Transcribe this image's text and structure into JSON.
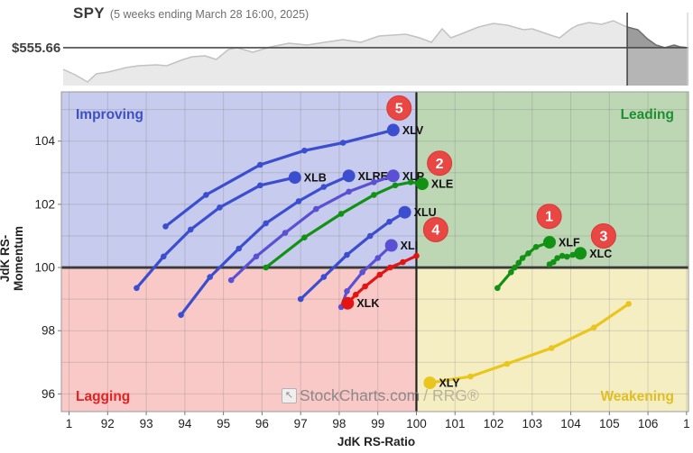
{
  "header": {
    "symbol": "SPY",
    "subtitle": "(5 weeks ending March 28 16:00, 2025)",
    "price_label": "$555.66"
  },
  "axes": {
    "x_label": "JdK RS-Ratio",
    "y_label": "JdK RS-Momentum"
  },
  "watermark": {
    "icon": "stockcharts-logo-icon",
    "brand": "StockCharts.com",
    "suffix": "/ RRG®"
  },
  "chart_data": [
    {
      "type": "area",
      "name": "spy-price-sparkline",
      "title": "SPY",
      "subtitle": "(5 weeks ending March 28 16:00, 2025)",
      "price_line_label": "$555.66",
      "price_line_y_pct": 51.7,
      "highlight_start_x_pct": 90.2,
      "colors": {
        "area": "#e9e9e9",
        "line": "#c2c2c2",
        "highlight_area": "#9c9c9c",
        "highlight_below": "#b5b5b5",
        "highlight_line": "#6e6e6e",
        "price_line": "#4a4a4a",
        "divider": "#4a4a4a",
        "right_edge": "#cfcfcf"
      },
      "points_pct": [
        [
          0,
          79.3
        ],
        [
          1.9,
          86.2
        ],
        [
          3.9,
          95.4
        ],
        [
          5.3,
          85.1
        ],
        [
          7.2,
          82.8
        ],
        [
          10.1,
          77.0
        ],
        [
          12.0,
          74.7
        ],
        [
          14.9,
          73.6
        ],
        [
          16.6,
          74.7
        ],
        [
          18.8,
          67.8
        ],
        [
          20.6,
          63.2
        ],
        [
          22.7,
          62.1
        ],
        [
          24.5,
          66.7
        ],
        [
          26.4,
          54.0
        ],
        [
          27.8,
          51.7
        ],
        [
          30.3,
          57.5
        ],
        [
          33.2,
          50.6
        ],
        [
          36.1,
          46.0
        ],
        [
          39.0,
          48.3
        ],
        [
          41.8,
          44.8
        ],
        [
          44.7,
          41.4
        ],
        [
          47.6,
          44.8
        ],
        [
          50.5,
          36.8
        ],
        [
          54.8,
          34.5
        ],
        [
          57.0,
          39.1
        ],
        [
          58.9,
          44.8
        ],
        [
          60.6,
          27.6
        ],
        [
          62.0,
          39.1
        ],
        [
          63.9,
          33.3
        ],
        [
          66.4,
          25.3
        ],
        [
          68.8,
          20.7
        ],
        [
          71.1,
          23.0
        ],
        [
          73.6,
          28.7
        ],
        [
          75.0,
          27.6
        ],
        [
          78.4,
          36.8
        ],
        [
          79.4,
          39.1
        ],
        [
          81.2,
          27.6
        ],
        [
          82.3,
          23.0
        ],
        [
          84.1,
          19.5
        ],
        [
          86.1,
          21.8
        ],
        [
          88.0,
          17.2
        ],
        [
          89.5,
          23.0
        ],
        [
          90.2,
          25.3
        ],
        [
          91.9,
          28.7
        ],
        [
          93.4,
          40.2
        ],
        [
          94.8,
          48.3
        ],
        [
          96.2,
          51.7
        ],
        [
          97.7,
          48.3
        ],
        [
          98.6,
          50.6
        ],
        [
          100,
          51.7
        ]
      ]
    },
    {
      "type": "line",
      "name": "relative-rotation-graph",
      "xlabel": "JdK RS-Ratio",
      "ylabel": "JdK RS-Momentum",
      "xlim": [
        90.8,
        107.05
      ],
      "ylim": [
        95.44,
        105.56
      ],
      "grid": true,
      "center": {
        "x": 100,
        "y": 100
      },
      "x_ticks": [
        {
          "value": 91,
          "label": "1"
        },
        {
          "value": 92,
          "label": "92"
        },
        {
          "value": 93,
          "label": "93"
        },
        {
          "value": 94,
          "label": "94"
        },
        {
          "value": 95,
          "label": "95"
        },
        {
          "value": 96,
          "label": "96"
        },
        {
          "value": 97,
          "label": "97"
        },
        {
          "value": 98,
          "label": "98"
        },
        {
          "value": 99,
          "label": "99"
        },
        {
          "value": 100,
          "label": "100"
        },
        {
          "value": 101,
          "label": "101"
        },
        {
          "value": 102,
          "label": "102"
        },
        {
          "value": 103,
          "label": "103"
        },
        {
          "value": 104,
          "label": "104"
        },
        {
          "value": 105,
          "label": "105"
        },
        {
          "value": 106,
          "label": "106"
        },
        {
          "value": 107,
          "label": "1"
        }
      ],
      "y_ticks": [
        {
          "value": 104,
          "label": "104"
        },
        {
          "value": 102,
          "label": "102"
        },
        {
          "value": 100,
          "label": "100"
        },
        {
          "value": 98,
          "label": "98"
        },
        {
          "value": 96,
          "label": "96"
        }
      ],
      "quadrants": [
        {
          "id": "improving",
          "label": "Improving",
          "corner": "top-left",
          "bg": "#c7cbed",
          "text_color": "#3c50c4"
        },
        {
          "id": "leading",
          "label": "Leading",
          "corner": "top-right",
          "bg": "#bdd6b4",
          "text_color": "#1d8f2d"
        },
        {
          "id": "lagging",
          "label": "Lagging",
          "corner": "bottom-left",
          "bg": "#f8c9c7",
          "text_color": "#e52222"
        },
        {
          "id": "weakening",
          "label": "Weakening",
          "corner": "bottom-right",
          "bg": "#f6eec3",
          "text_color": "#dfbf24"
        }
      ],
      "series": [
        {
          "name": "XLV",
          "color": "#3b4ed0",
          "points": [
            [
              93.5,
              101.3
            ],
            [
              94.55,
              102.3
            ],
            [
              95.95,
              103.25
            ],
            [
              97.1,
              103.7
            ],
            [
              98.1,
              103.95
            ],
            [
              99.4,
              104.35
            ]
          ]
        },
        {
          "name": "XLB",
          "color": "#3b4ed0",
          "points": [
            [
              92.75,
              99.35
            ],
            [
              93.45,
              100.35
            ],
            [
              94.15,
              101.2
            ],
            [
              94.9,
              101.9
            ],
            [
              95.95,
              102.6
            ],
            [
              96.85,
              102.85
            ]
          ]
        },
        {
          "name": "XLRE",
          "color": "#3b4ed0",
          "points": [
            [
              93.9,
              98.5
            ],
            [
              94.65,
              99.7
            ],
            [
              95.4,
              100.6
            ],
            [
              96.1,
              101.4
            ],
            [
              96.95,
              102.1
            ],
            [
              97.6,
              102.55
            ],
            [
              98.25,
              102.9
            ]
          ]
        },
        {
          "name": "XLP",
          "color": "#5b50d4",
          "points": [
            [
              95.2,
              99.6
            ],
            [
              95.85,
              100.35
            ],
            [
              96.6,
              101.1
            ],
            [
              97.4,
              101.85
            ],
            [
              98.25,
              102.4
            ],
            [
              98.9,
              102.7
            ],
            [
              99.4,
              102.9
            ]
          ]
        },
        {
          "name": "XLU",
          "color": "#3b4ed0",
          "points": [
            [
              97.0,
              99.0
            ],
            [
              97.6,
              99.7
            ],
            [
              98.2,
              100.4
            ],
            [
              98.8,
              101.0
            ],
            [
              99.3,
              101.45
            ],
            [
              99.7,
              101.75
            ]
          ]
        },
        {
          "name": "XLI",
          "color": "#5b50d4",
          "points": [
            [
              98.05,
              98.75
            ],
            [
              98.2,
              99.25
            ],
            [
              98.6,
              99.85
            ],
            [
              99.0,
              100.3
            ],
            [
              99.35,
              100.7
            ]
          ]
        },
        {
          "name": "XLE",
          "color": "#129214",
          "points": [
            [
              96.1,
              100.0
            ],
            [
              97.1,
              100.95
            ],
            [
              98.05,
              101.7
            ],
            [
              98.9,
              102.3
            ],
            [
              99.45,
              102.6
            ],
            [
              99.85,
              102.7
            ],
            [
              100.15,
              102.65
            ]
          ]
        },
        {
          "name": "XLF",
          "color": "#129214",
          "points": [
            [
              102.1,
              99.35
            ],
            [
              102.45,
              99.85
            ],
            [
              102.55,
              100.0
            ],
            [
              102.65,
              100.15
            ],
            [
              102.75,
              100.3
            ],
            [
              102.9,
              100.45
            ],
            [
              103.1,
              100.65
            ],
            [
              103.45,
              100.8
            ]
          ]
        },
        {
          "name": "XLC",
          "color": "#129214",
          "points": [
            [
              103.45,
              100.1
            ],
            [
              103.55,
              100.17
            ],
            [
              103.65,
              100.3
            ],
            [
              103.78,
              100.37
            ],
            [
              103.9,
              100.34
            ],
            [
              104.05,
              100.4
            ],
            [
              104.25,
              100.45
            ]
          ]
        },
        {
          "name": "XLK",
          "color": "#e31414",
          "points": [
            [
              100.0,
              100.37
            ],
            [
              99.65,
              100.17
            ],
            [
              99.32,
              100.0
            ],
            [
              99.05,
              99.77
            ],
            [
              98.67,
              99.4
            ],
            [
              98.43,
              99.14
            ],
            [
              98.22,
              98.87
            ]
          ]
        },
        {
          "name": "XLY",
          "color": "#eac51c",
          "points": [
            [
              105.5,
              98.85
            ],
            [
              104.6,
              98.1
            ],
            [
              103.5,
              97.45
            ],
            [
              102.35,
              96.95
            ],
            [
              101.4,
              96.55
            ],
            [
              100.35,
              96.35
            ]
          ]
        }
      ],
      "badges": [
        {
          "label": "1",
          "x": 103.44,
          "y": 101.62,
          "bg": "#e84744",
          "text_color": "#ffffff"
        },
        {
          "label": "2",
          "x": 100.6,
          "y": 103.3,
          "bg": "#e84744",
          "text_color": "#ffffff"
        },
        {
          "label": "3",
          "x": 104.85,
          "y": 101.0,
          "bg": "#e84744",
          "text_color": "#ffffff"
        },
        {
          "label": "4",
          "x": 100.5,
          "y": 101.2,
          "bg": "#e84744",
          "text_color": "#ffffff"
        },
        {
          "label": "5",
          "x": 99.55,
          "y": 105.05,
          "bg": "#e84744",
          "text_color": "#ffffff"
        }
      ]
    }
  ]
}
